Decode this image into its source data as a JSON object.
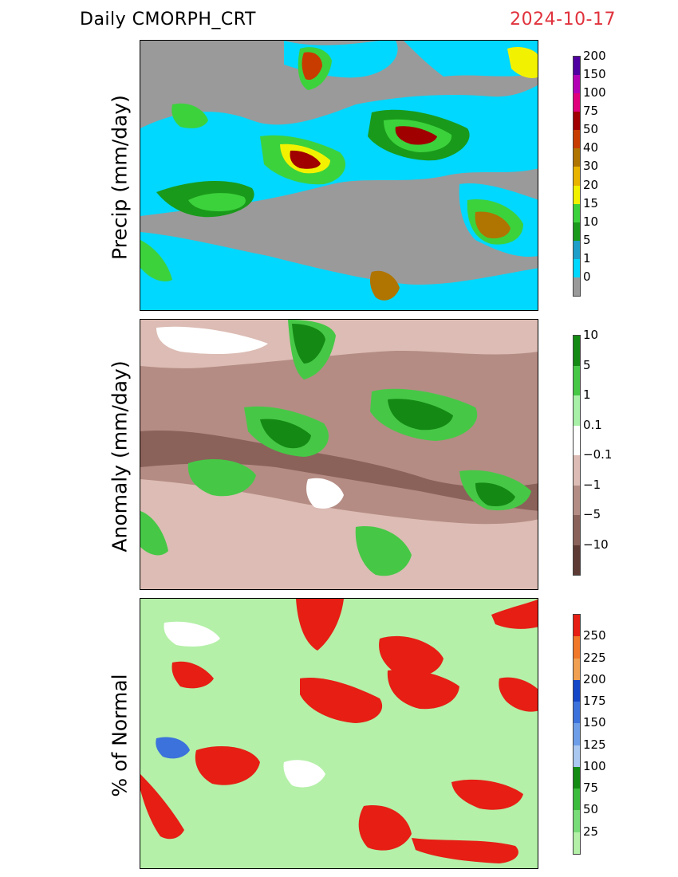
{
  "header": {
    "title": "Daily  CMORPH_CRT",
    "date": "2024-10-17"
  },
  "panels": [
    {
      "id": "precip",
      "ylabel": "Precip  (mm/day)",
      "colorbar": {
        "colors": [
          "#9a9a9a",
          "#00d8ff",
          "#1e9ec8",
          "#1a9a1a",
          "#3cd23c",
          "#f2f200",
          "#e8b400",
          "#b07400",
          "#c83c00",
          "#a00000",
          "#e0007c",
          "#b400b4",
          "#5000a0"
        ],
        "labels": [
          "0",
          "1",
          "5",
          "10",
          "15",
          "20",
          "30",
          "40",
          "50",
          "75",
          "100",
          "150",
          "200"
        ]
      }
    },
    {
      "id": "anomaly",
      "ylabel": "Anomaly  (mm/day)",
      "colorbar": {
        "colors": [
          "#5e3a34",
          "#8a625a",
          "#b48c84",
          "#dcbcb4",
          "#ffffff",
          "#a8f0a8",
          "#46c846",
          "#148a14"
        ],
        "labels": [
          "−10",
          "−5",
          "−1",
          "−0.1",
          "0.1",
          "1",
          "5",
          "10"
        ]
      }
    },
    {
      "id": "percent",
      "ylabel": "%  of  Normal",
      "colorbar": {
        "colors": [
          "#b4f0a8",
          "#78dc78",
          "#3cbc3c",
          "#148c14",
          "#aac8f0",
          "#6e9ee8",
          "#3c72dc",
          "#1446c8",
          "#f0a050",
          "#f07828",
          "#e61e14"
        ],
        "labels": [
          "25",
          "50",
          "75",
          "100",
          "125",
          "150",
          "175",
          "200",
          "225",
          "250"
        ]
      }
    }
  ]
}
